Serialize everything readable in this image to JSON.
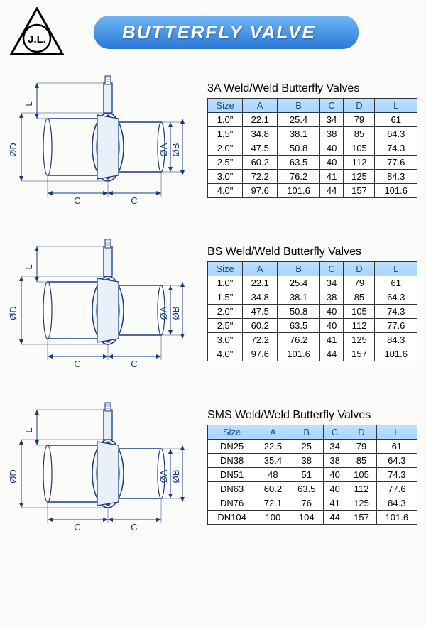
{
  "logo_text": "J.L.",
  "page_title": "BUTTERFLY VALVE",
  "diagram_labels": {
    "L": "L",
    "D": "ØD",
    "A": "ØA",
    "B": "ØB",
    "C": "C"
  },
  "colors": {
    "stroke": "#1a3a7a",
    "fill_light": "#dfe8f5",
    "pill_grad_top": "#6fb6f5",
    "pill_grad_bot": "#2b78d6",
    "header_cell_bg": "#b3d9ff",
    "header_cell_text": "#1a4b8c"
  },
  "tables": [
    {
      "title": "3A Weld/Weld Butterfly Valves",
      "columns": [
        "Size",
        "A",
        "B",
        "C",
        "D",
        "L"
      ],
      "rows": [
        [
          "1.0\"",
          "22.1",
          "25.4",
          "34",
          "79",
          "61"
        ],
        [
          "1.5\"",
          "34.8",
          "38.1",
          "38",
          "85",
          "64.3"
        ],
        [
          "2.0\"",
          "47.5",
          "50.8",
          "40",
          "105",
          "74.3"
        ],
        [
          "2.5\"",
          "60.2",
          "63.5",
          "40",
          "112",
          "77.6"
        ],
        [
          "3.0\"",
          "72.2",
          "76.2",
          "41",
          "125",
          "84.3"
        ],
        [
          "4.0\"",
          "97.6",
          "101.6",
          "44",
          "157",
          "101.6"
        ]
      ]
    },
    {
      "title": "BS Weld/Weld Butterfly Valves",
      "columns": [
        "Size",
        "A",
        "B",
        "C",
        "D",
        "L"
      ],
      "rows": [
        [
          "1.0\"",
          "22.1",
          "25.4",
          "34",
          "79",
          "61"
        ],
        [
          "1.5\"",
          "34.8",
          "38.1",
          "38",
          "85",
          "64.3"
        ],
        [
          "2.0\"",
          "47.5",
          "50.8",
          "40",
          "105",
          "74.3"
        ],
        [
          "2.5\"",
          "60.2",
          "63.5",
          "40",
          "112",
          "77.6"
        ],
        [
          "3.0\"",
          "72.2",
          "76.2",
          "41",
          "125",
          "84.3"
        ],
        [
          "4.0\"",
          "97.6",
          "101.6",
          "44",
          "157",
          "101.6"
        ]
      ]
    },
    {
      "title": "SMS Weld/Weld Butterfly Valves",
      "columns": [
        "Size",
        "A",
        "B",
        "C",
        "D",
        "L"
      ],
      "rows": [
        [
          "DN25",
          "22.5",
          "25",
          "34",
          "79",
          "61"
        ],
        [
          "DN38",
          "35.4",
          "38",
          "38",
          "85",
          "64.3"
        ],
        [
          "DN51",
          "48",
          "51",
          "40",
          "105",
          "74.3"
        ],
        [
          "DN63",
          "60.2",
          "63.5",
          "40",
          "112",
          "77.6"
        ],
        [
          "DN76",
          "72.1",
          "76",
          "41",
          "125",
          "84.3"
        ],
        [
          "DN104",
          "100",
          "104",
          "44",
          "157",
          "101.6"
        ]
      ]
    }
  ]
}
